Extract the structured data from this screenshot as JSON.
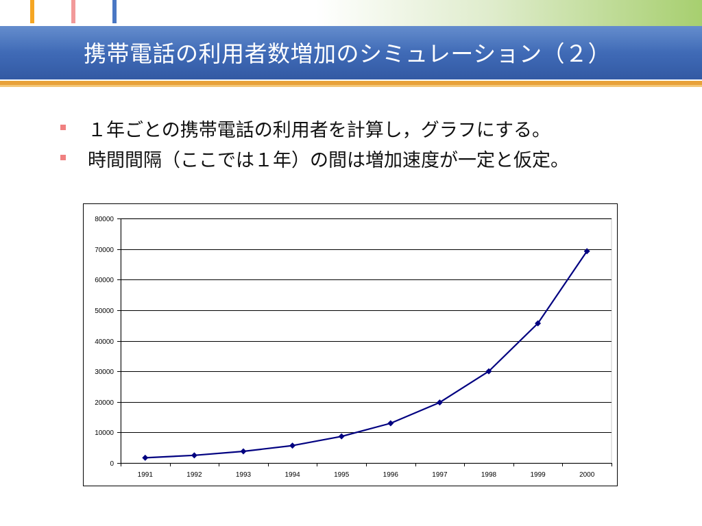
{
  "slide": {
    "title": "携帯電話の利用者数増加のシミュレーション（２）",
    "bullets": [
      "１年ごとの携帯電話の利用者を計算し，グラフにする。",
      "時間間隔（ここでは１年）の間は増加速度が一定と仮定。"
    ],
    "colors": {
      "title_band": "#3d67b3",
      "accent_line": "#e8a23a",
      "bullet_marker": "#f08080",
      "series_line": "#000080"
    }
  },
  "chart_data": {
    "type": "line",
    "title": "",
    "xlabel": "",
    "ylabel": "",
    "categories": [
      "1991",
      "1992",
      "1993",
      "1994",
      "1995",
      "1996",
      "1997",
      "1998",
      "1999",
      "2000"
    ],
    "series": [
      {
        "values": [
          1700,
          2500,
          3800,
          5700,
          8700,
          13000,
          19800,
          30000,
          45700,
          69300
        ]
      }
    ],
    "ylim": [
      0,
      80000
    ],
    "yticks": [
      "0",
      "10000",
      "20000",
      "30000",
      "40000",
      "50000",
      "60000",
      "70000",
      "80000"
    ],
    "grid": "horizontal",
    "marker": "diamond",
    "legend": "none"
  }
}
